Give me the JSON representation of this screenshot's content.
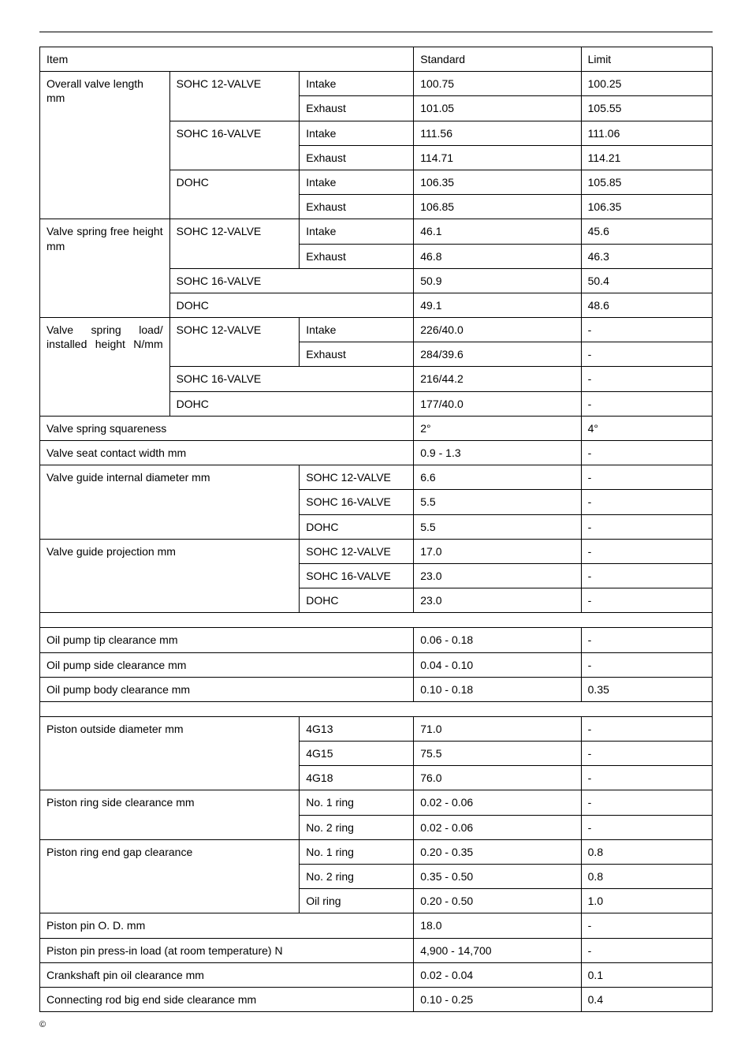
{
  "header": {
    "item": "Item",
    "standard": "Standard",
    "limit": "Limit"
  },
  "labels": {
    "overall_valve_length": "Overall valve length mm",
    "valve_spring_free": "Valve spring free height mm",
    "valve_spring_load": "Valve spring load/ installed height N/mm",
    "valve_spring_squareness": "Valve spring squareness",
    "valve_seat_contact": "Valve seat contact width mm",
    "valve_guide_internal": "Valve guide internal diameter mm",
    "valve_guide_projection": "Valve guide projection mm",
    "oil_pump_tip": "Oil pump tip clearance mm",
    "oil_pump_side": "Oil pump side clearance mm",
    "oil_pump_body": "Oil pump body clearance mm",
    "piston_outside": "Piston outside diameter mm",
    "piston_ring_side": "Piston ring side clearance mm",
    "piston_ring_end": "Piston ring end gap clearance",
    "piston_pin_od": "Piston pin O. D. mm",
    "piston_pin_press": "Piston pin press-in load (at room temperature) N",
    "crankshaft_pin_oil": "Crankshaft pin oil clearance mm",
    "connecting_rod": "Connecting rod big end side clearance mm"
  },
  "sub": {
    "sohc12": "SOHC 12-VALVE",
    "sohc16": "SOHC 16-VALVE",
    "dohc": "DOHC",
    "intake": "Intake",
    "exhaust": "Exhaust",
    "g13": "4G13",
    "g15": "4G15",
    "g18": "4G18",
    "ring1": "No. 1 ring",
    "ring2": "No. 2 ring",
    "oilring": "Oil ring"
  },
  "vals": {
    "ovl_s12_i_s": "100.75",
    "ovl_s12_i_l": "100.25",
    "ovl_s12_e_s": "101.05",
    "ovl_s12_e_l": "105.55",
    "ovl_s16_i_s": "111.56",
    "ovl_s16_i_l": "111.06",
    "ovl_s16_e_s": "114.71",
    "ovl_s16_e_l": "114.21",
    "ovl_d_i_s": "106.35",
    "ovl_d_i_l": "105.85",
    "ovl_d_e_s": "106.85",
    "ovl_d_e_l": "106.35",
    "vsf_s12_i_s": "46.1",
    "vsf_s12_i_l": "45.6",
    "vsf_s12_e_s": "46.8",
    "vsf_s12_e_l": "46.3",
    "vsf_s16_s": "50.9",
    "vsf_s16_l": "50.4",
    "vsf_d_s": "49.1",
    "vsf_d_l": "48.6",
    "vsl_s12_i_s": "226/40.0",
    "vsl_s12_i_l": "-",
    "vsl_s12_e_s": "284/39.6",
    "vsl_s12_e_l": "-",
    "vsl_s16_s": "216/44.2",
    "vsl_s16_l": "-",
    "vsl_d_s": "177/40.0",
    "vsl_d_l": "-",
    "vssq_s": "2°",
    "vssq_l": "4°",
    "vscw_s": "0.9 - 1.3",
    "vscw_l": "-",
    "vgid_s12_s": "6.6",
    "vgid_s12_l": "-",
    "vgid_s16_s": "5.5",
    "vgid_s16_l": "-",
    "vgid_d_s": "5.5",
    "vgid_d_l": "-",
    "vgp_s12_s": "17.0",
    "vgp_s12_l": "-",
    "vgp_s16_s": "23.0",
    "vgp_s16_l": "-",
    "vgp_d_s": "23.0",
    "vgp_d_l": "-",
    "opt_s": "0.06 - 0.18",
    "opt_l": "-",
    "ops_s": "0.04 - 0.10",
    "ops_l": "-",
    "opb_s": "0.10 - 0.18",
    "opb_l": "0.35",
    "pod_g13_s": "71.0",
    "pod_g13_l": "-",
    "pod_g15_s": "75.5",
    "pod_g15_l": "-",
    "pod_g18_s": "76.0",
    "pod_g18_l": "-",
    "prs_r1_s": "0.02 - 0.06",
    "prs_r1_l": "-",
    "prs_r2_s": "0.02 - 0.06",
    "prs_r2_l": "-",
    "pre_r1_s": "0.20 - 0.35",
    "pre_r1_l": "0.8",
    "pre_r2_s": "0.35 - 0.50",
    "pre_r2_l": "0.8",
    "pre_or_s": "0.20 - 0.50",
    "pre_or_l": "1.0",
    "ppod_s": "18.0",
    "ppod_l": "-",
    "ppp_s": "4,900 - 14,700",
    "ppp_l": "-",
    "cpo_s": "0.02 - 0.04",
    "cpo_l": "0.1",
    "crb_s": "0.10 - 0.25",
    "crb_l": "0.4"
  },
  "copyright": "©"
}
